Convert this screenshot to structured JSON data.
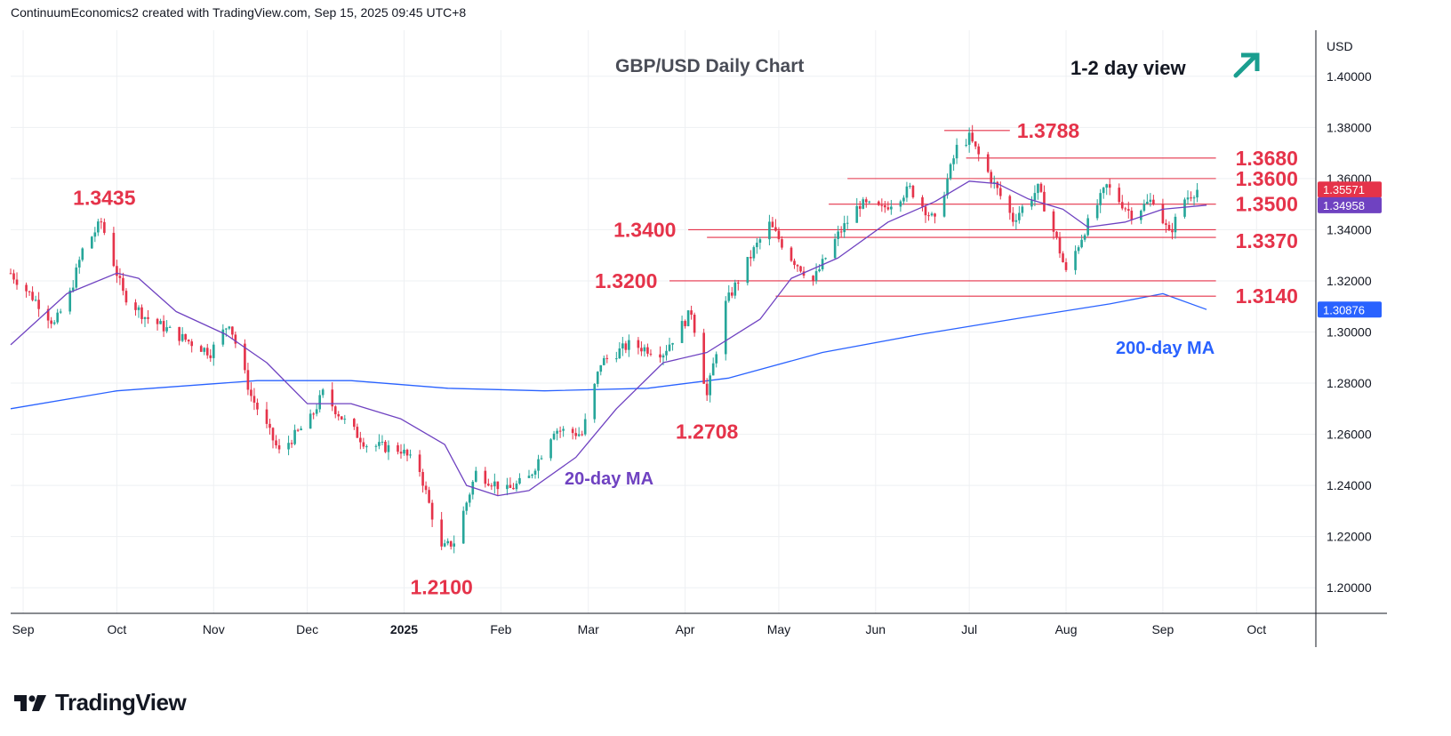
{
  "header": {
    "attribution": "ContinuumEconomics2 created with TradingView.com, Sep 15, 2025 09:45 UTC+8"
  },
  "footer": {
    "brand": "TradingView"
  },
  "colors": {
    "up": "#26a69a",
    "down": "#e5334a",
    "ma20": "#6f42c1",
    "ma200": "#2962ff",
    "level": "#e5334a",
    "arrow": "#1a9e8f",
    "grid": "#eef0f3"
  },
  "icons": {
    "view_arrow": "arrow-up-right-icon",
    "logo": "tradingview-logo-icon"
  },
  "chart_data": {
    "type": "candlestick",
    "title": "GBP/USD Daily Chart",
    "view_label": "1-2 day view",
    "currency": "USD",
    "ylim": [
      1.19,
      1.418
    ],
    "y_ticks": [
      "1.40000",
      "1.38000",
      "1.36000",
      "1.34000",
      "1.32000",
      "1.30000",
      "1.28000",
      "1.26000",
      "1.24000",
      "1.22000",
      "1.20000"
    ],
    "x_range": [
      "2024-08-28",
      "2025-10-20"
    ],
    "x_ticks": [
      {
        "date": "2024-09-01",
        "label": "Sep"
      },
      {
        "date": "2024-10-01",
        "label": "Oct"
      },
      {
        "date": "2024-11-01",
        "label": "Nov"
      },
      {
        "date": "2024-12-01",
        "label": "Dec"
      },
      {
        "date": "2025-01-01",
        "label": "2025"
      },
      {
        "date": "2025-02-01",
        "label": "Feb"
      },
      {
        "date": "2025-03-01",
        "label": "Mar"
      },
      {
        "date": "2025-04-01",
        "label": "Apr"
      },
      {
        "date": "2025-05-01",
        "label": "May"
      },
      {
        "date": "2025-06-01",
        "label": "Jun"
      },
      {
        "date": "2025-07-01",
        "label": "Jul"
      },
      {
        "date": "2025-08-01",
        "label": "Aug"
      },
      {
        "date": "2025-09-01",
        "label": "Sep"
      },
      {
        "date": "2025-10-01",
        "label": "Oct"
      }
    ],
    "price_path": [
      [
        "2024-08-28",
        1.323
      ],
      [
        "2024-09-06",
        1.311
      ],
      [
        "2024-09-11",
        1.303
      ],
      [
        "2024-09-16",
        1.315
      ],
      [
        "2024-09-20",
        1.332
      ],
      [
        "2024-09-26",
        1.343
      ],
      [
        "2024-10-03",
        1.315
      ],
      [
        "2024-10-10",
        1.306
      ],
      [
        "2024-10-23",
        1.297
      ],
      [
        "2024-10-31",
        1.292
      ],
      [
        "2024-11-06",
        1.304
      ],
      [
        "2024-11-13",
        1.275
      ],
      [
        "2024-11-22",
        1.253
      ],
      [
        "2024-12-02",
        1.266
      ],
      [
        "2024-12-06",
        1.276
      ],
      [
        "2024-12-13",
        1.265
      ],
      [
        "2024-12-20",
        1.256
      ],
      [
        "2024-12-31",
        1.254
      ],
      [
        "2025-01-06",
        1.246
      ],
      [
        "2025-01-13",
        1.215
      ],
      [
        "2025-01-17",
        1.218
      ],
      [
        "2025-01-24",
        1.245
      ],
      [
        "2025-02-03",
        1.238
      ],
      [
        "2025-02-10",
        1.243
      ],
      [
        "2025-02-18",
        1.262
      ],
      [
        "2025-02-27",
        1.26
      ],
      [
        "2025-03-05",
        1.288
      ],
      [
        "2025-03-14",
        1.295
      ],
      [
        "2025-03-25",
        1.292
      ],
      [
        "2025-04-03",
        1.308
      ],
      [
        "2025-04-08",
        1.275
      ],
      [
        "2025-04-14",
        1.311
      ],
      [
        "2025-04-23",
        1.332
      ],
      [
        "2025-04-28",
        1.342
      ],
      [
        "2025-05-05",
        1.329
      ],
      [
        "2025-05-12",
        1.32
      ],
      [
        "2025-05-20",
        1.338
      ],
      [
        "2025-05-27",
        1.35
      ],
      [
        "2025-06-03",
        1.348
      ],
      [
        "2025-06-12",
        1.356
      ],
      [
        "2025-06-20",
        1.343
      ],
      [
        "2025-06-27",
        1.372
      ],
      [
        "2025-07-01",
        1.376
      ],
      [
        "2025-07-08",
        1.36
      ],
      [
        "2025-07-15",
        1.344
      ],
      [
        "2025-07-23",
        1.356
      ],
      [
        "2025-07-29",
        1.336
      ],
      [
        "2025-08-01",
        1.323
      ],
      [
        "2025-08-07",
        1.34
      ],
      [
        "2025-08-14",
        1.357
      ],
      [
        "2025-08-22",
        1.346
      ],
      [
        "2025-08-29",
        1.352
      ],
      [
        "2025-09-03",
        1.338
      ],
      [
        "2025-09-08",
        1.352
      ],
      [
        "2025-09-12",
        1.3557
      ]
    ],
    "ma20": [
      [
        "2024-08-28",
        1.295
      ],
      [
        "2024-09-15",
        1.315
      ],
      [
        "2024-10-01",
        1.323
      ],
      [
        "2024-10-08",
        1.321
      ],
      [
        "2024-10-20",
        1.308
      ],
      [
        "2024-11-05",
        1.299
      ],
      [
        "2024-11-18",
        1.288
      ],
      [
        "2024-12-01",
        1.272
      ],
      [
        "2024-12-15",
        1.272
      ],
      [
        "2024-12-31",
        1.266
      ],
      [
        "2025-01-14",
        1.256
      ],
      [
        "2025-01-21",
        1.24
      ],
      [
        "2025-01-31",
        1.236
      ],
      [
        "2025-02-10",
        1.238
      ],
      [
        "2025-02-25",
        1.251
      ],
      [
        "2025-03-10",
        1.27
      ],
      [
        "2025-03-25",
        1.288
      ],
      [
        "2025-04-08",
        1.292
      ],
      [
        "2025-04-25",
        1.305
      ],
      [
        "2025-05-05",
        1.321
      ],
      [
        "2025-05-20",
        1.329
      ],
      [
        "2025-06-05",
        1.343
      ],
      [
        "2025-06-20",
        1.351
      ],
      [
        "2025-07-01",
        1.359
      ],
      [
        "2025-07-10",
        1.358
      ],
      [
        "2025-07-20",
        1.352
      ],
      [
        "2025-07-31",
        1.348
      ],
      [
        "2025-08-08",
        1.341
      ],
      [
        "2025-08-20",
        1.343
      ],
      [
        "2025-09-01",
        1.348
      ],
      [
        "2025-09-15",
        1.3496
      ]
    ],
    "ma200": [
      [
        "2024-08-28",
        1.27
      ],
      [
        "2024-10-01",
        1.277
      ],
      [
        "2024-11-15",
        1.281
      ],
      [
        "2024-12-15",
        1.281
      ],
      [
        "2025-01-15",
        1.278
      ],
      [
        "2025-02-15",
        1.277
      ],
      [
        "2025-03-20",
        1.278
      ],
      [
        "2025-04-15",
        1.282
      ],
      [
        "2025-05-15",
        1.292
      ],
      [
        "2025-06-15",
        1.299
      ],
      [
        "2025-07-15",
        1.305
      ],
      [
        "2025-08-15",
        1.311
      ],
      [
        "2025-09-01",
        1.315
      ],
      [
        "2025-09-15",
        1.3088
      ]
    ],
    "levels": [
      {
        "value": 1.3788,
        "label": "1.3788",
        "from": "2025-06-23",
        "to": "2025-07-14"
      },
      {
        "value": 1.368,
        "label": "1.3680",
        "from": "2025-06-30",
        "to": "2025-09-18"
      },
      {
        "value": 1.36,
        "label": "1.3600",
        "from": "2025-05-23",
        "to": "2025-09-18"
      },
      {
        "value": 1.35,
        "label": "1.3500",
        "from": "2025-05-17",
        "to": "2025-09-18"
      },
      {
        "value": 1.34,
        "label": "1.3400",
        "from": "2025-04-02",
        "to": "2025-09-18"
      },
      {
        "value": 1.337,
        "label": "1.3370",
        "from": "2025-04-08",
        "to": "2025-09-18"
      },
      {
        "value": 1.32,
        "label": "1.3200",
        "from": "2025-03-27",
        "to": "2025-09-18"
      },
      {
        "value": 1.314,
        "label": "1.3140",
        "from": "2025-04-30",
        "to": "2025-09-18"
      }
    ],
    "annotations": [
      {
        "label": "1.3435",
        "date": "2024-09-27",
        "value": 1.3435
      },
      {
        "label": "1.2100",
        "date": "2025-01-13",
        "value": 1.21
      },
      {
        "label": "1.2708",
        "date": "2025-04-08",
        "value": 1.2708
      }
    ],
    "series_labels": {
      "ma20": "20-day MA",
      "ma200": "200-day MA"
    },
    "price_badges": [
      {
        "label": "1.35571",
        "value": 1.35571,
        "color": "#e5334a"
      },
      {
        "label": "1.34958",
        "value": 1.34958,
        "color": "#6f42c1"
      },
      {
        "label": "1.30876",
        "value": 1.30876,
        "color": "#2962ff"
      }
    ]
  }
}
